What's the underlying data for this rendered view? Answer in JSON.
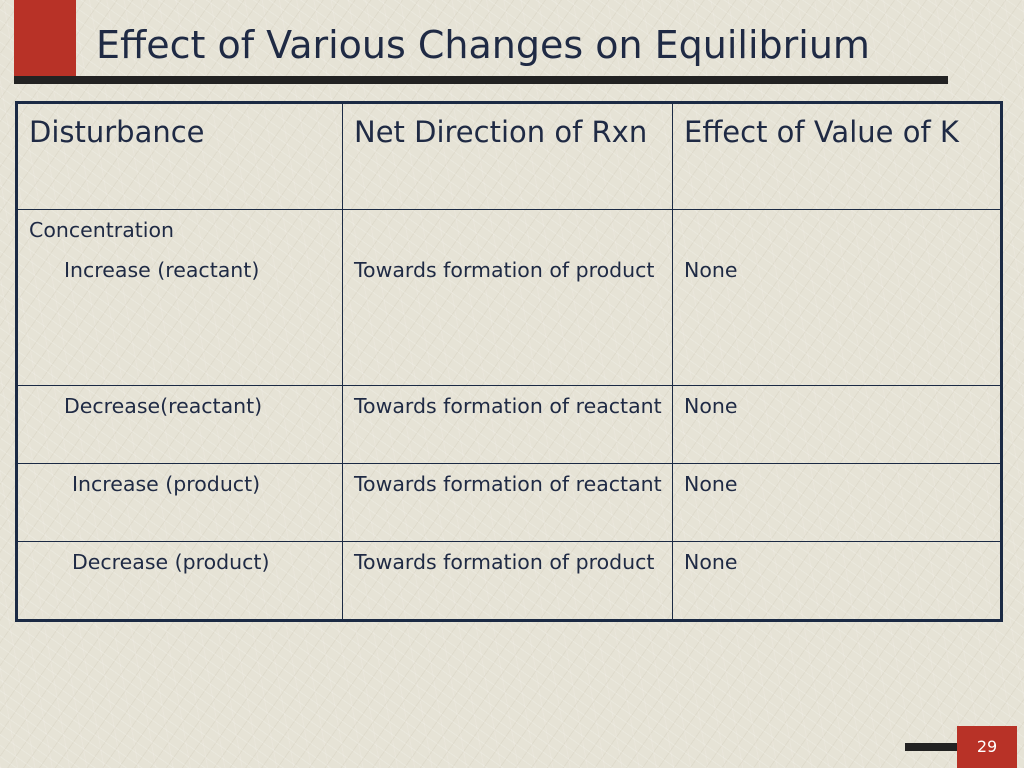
{
  "slide": {
    "title": "Effect of Various Changes on Equilibrium",
    "page_number": "29"
  },
  "table": {
    "headers": [
      "Disturbance",
      "Net Direction of Rxn",
      "Effect of Value of K"
    ],
    "group_label": "Concentration",
    "rows": [
      {
        "disturbance": "Increase (reactant)",
        "direction": "Towards formation of product",
        "effect": "None"
      },
      {
        "disturbance": "Decrease(reactant)",
        "direction": "Towards formation of reactant",
        "effect": "None"
      },
      {
        "disturbance": "Increase (product)",
        "direction": "Towards formation of reactant",
        "effect": "None"
      },
      {
        "disturbance": "Decrease (product)",
        "direction": "Towards formation of product",
        "effect": "None"
      }
    ]
  },
  "colors": {
    "accent": "#b83227",
    "text": "#1f2a44",
    "background": "#e6e3d6",
    "rule": "#222222"
  }
}
